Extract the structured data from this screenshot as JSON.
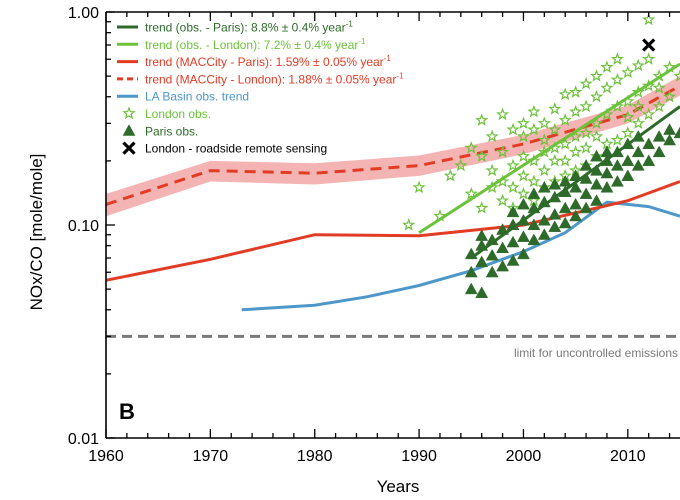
{
  "chart_data": {
    "type": "scatter",
    "panel_label": "B",
    "xlabel": "Years",
    "ylabel": "NOx/CO [mole/mole]",
    "xlim": [
      1960,
      2015
    ],
    "ylim": [
      0.01,
      1.0
    ],
    "y_scale": "log",
    "x_ticks": [
      1960,
      1970,
      1980,
      1990,
      2000,
      2010
    ],
    "y_ticks": [
      {
        "value": 0.01,
        "label": "0.01"
      },
      {
        "value": 0.1,
        "label": "0.10"
      },
      {
        "value": 1.0,
        "label": "1.00"
      }
    ],
    "grid": false,
    "legend_position": "top-left",
    "legend": [
      {
        "id": "paris_trend",
        "text": "trend (obs. - Paris): 8.8% ± 0.4% year",
        "sup": "-1",
        "color": "#2e6b2a",
        "style": "solid"
      },
      {
        "id": "london_trend",
        "text": "trend (obs. - London): 7.2% ± 0.4% year",
        "sup": "-1",
        "color": "#6cc23a",
        "style": "solid"
      },
      {
        "id": "macc_paris",
        "text": "trend (MACCity - Paris): 1.59% ± 0.05% year",
        "sup": "-1",
        "color": "#e23c25",
        "style": "solid"
      },
      {
        "id": "macc_london",
        "text": "trend (MACCity - London): 1.88% ± 0.05% year",
        "sup": "-1",
        "color": "#e23c25",
        "style": "dashed"
      },
      {
        "id": "la_basin",
        "text": "LA Basin obs. trend",
        "sup": "",
        "color": "#4d97c9",
        "style": "solid"
      },
      {
        "id": "london_obs",
        "text": "London obs.",
        "sup": "",
        "color": "#6cc23a",
        "style": "star"
      },
      {
        "id": "paris_obs",
        "text": "Paris obs.",
        "sup": "",
        "color": "#2e6b2a",
        "style": "triangle"
      },
      {
        "id": "remote",
        "text": "London - roadside remote sensing",
        "sup": "",
        "color": "#000000",
        "style": "cross"
      }
    ],
    "annotations": [
      {
        "text": "limit for uncontrolled emissions",
        "x": 2015,
        "y": 0.027
      }
    ],
    "colors": {
      "paris": "#2e6b2a",
      "london": "#6cc23a",
      "maccity": "#e23c25",
      "maccity_band": "#f2a7a7",
      "la_basin": "#4d97c9",
      "limit": "#7a7a7a",
      "remote": "#000000"
    },
    "series": [
      {
        "name": "trend (MACCity - London)",
        "x": [
          1960,
          1970,
          1980,
          1990,
          2000,
          2010,
          2015
        ],
        "y": [
          0.125,
          0.18,
          0.175,
          0.19,
          0.24,
          0.33,
          0.45
        ],
        "band_low": [
          0.11,
          0.16,
          0.155,
          0.17,
          0.215,
          0.3,
          0.405
        ],
        "band_high": [
          0.14,
          0.2,
          0.195,
          0.212,
          0.265,
          0.365,
          0.5
        ]
      },
      {
        "name": "trend (MACCity - Paris)",
        "x": [
          1960,
          1970,
          1980,
          1990,
          2000,
          2010,
          2015
        ],
        "y": [
          0.055,
          0.069,
          0.09,
          0.089,
          0.1,
          0.13,
          0.16
        ]
      },
      {
        "name": "LA Basin obs. trend",
        "x": [
          1973,
          1980,
          1985,
          1990,
          1995,
          2000,
          2004,
          2008,
          2012,
          2015
        ],
        "y": [
          0.04,
          0.042,
          0.046,
          0.052,
          0.061,
          0.075,
          0.092,
          0.128,
          0.122,
          0.11
        ]
      },
      {
        "name": "trend (obs. - London)",
        "x": [
          1990,
          2015
        ],
        "y": [
          0.092,
          0.57
        ]
      },
      {
        "name": "trend (obs. - Paris)",
        "x": [
          1995,
          2015
        ],
        "y": [
          0.07,
          0.36
        ]
      },
      {
        "name": "limit for uncontrolled emissions",
        "x": [
          1960,
          2015
        ],
        "y": [
          0.03,
          0.03
        ]
      },
      {
        "name": "London obs.",
        "points": [
          [
            1989,
            0.1
          ],
          [
            1990,
            0.15
          ],
          [
            1992,
            0.11
          ],
          [
            1993,
            0.17
          ],
          [
            1994,
            0.19
          ],
          [
            1995,
            0.14
          ],
          [
            1995,
            0.23
          ],
          [
            1996,
            0.12
          ],
          [
            1996,
            0.21
          ],
          [
            1996,
            0.31
          ],
          [
            1997,
            0.15
          ],
          [
            1997,
            0.26
          ],
          [
            1997,
            0.18
          ],
          [
            1998,
            0.13
          ],
          [
            1998,
            0.22
          ],
          [
            1998,
            0.33
          ],
          [
            1998,
            0.16
          ],
          [
            1999,
            0.12
          ],
          [
            1999,
            0.19
          ],
          [
            1999,
            0.28
          ],
          [
            1999,
            0.15
          ],
          [
            2000,
            0.14
          ],
          [
            2000,
            0.21
          ],
          [
            2000,
            0.3
          ],
          [
            2000,
            0.17
          ],
          [
            2000,
            0.26
          ],
          [
            2001,
            0.13
          ],
          [
            2001,
            0.2
          ],
          [
            2001,
            0.28
          ],
          [
            2001,
            0.16
          ],
          [
            2001,
            0.34
          ],
          [
            2002,
            0.15
          ],
          [
            2002,
            0.22
          ],
          [
            2002,
            0.3
          ],
          [
            2002,
            0.18
          ],
          [
            2002,
            0.25
          ],
          [
            2003,
            0.16
          ],
          [
            2003,
            0.23
          ],
          [
            2003,
            0.35
          ],
          [
            2003,
            0.2
          ],
          [
            2003,
            0.28
          ],
          [
            2004,
            0.17
          ],
          [
            2004,
            0.24
          ],
          [
            2004,
            0.31
          ],
          [
            2004,
            0.41
          ],
          [
            2004,
            0.2
          ],
          [
            2005,
            0.18
          ],
          [
            2005,
            0.26
          ],
          [
            2005,
            0.34
          ],
          [
            2005,
            0.42
          ],
          [
            2005,
            0.22
          ],
          [
            2006,
            0.19
          ],
          [
            2006,
            0.27
          ],
          [
            2006,
            0.36
          ],
          [
            2006,
            0.46
          ],
          [
            2006,
            0.23
          ],
          [
            2007,
            0.21
          ],
          [
            2007,
            0.3
          ],
          [
            2007,
            0.4
          ],
          [
            2007,
            0.5
          ],
          [
            2007,
            0.26
          ],
          [
            2008,
            0.24
          ],
          [
            2008,
            0.33
          ],
          [
            2008,
            0.44
          ],
          [
            2008,
            0.55
          ],
          [
            2009,
            0.25
          ],
          [
            2009,
            0.36
          ],
          [
            2009,
            0.48
          ],
          [
            2009,
            0.6
          ],
          [
            2010,
            0.27
          ],
          [
            2010,
            0.38
          ],
          [
            2010,
            0.52
          ],
          [
            2010,
            0.32
          ],
          [
            2011,
            0.3
          ],
          [
            2011,
            0.42
          ],
          [
            2011,
            0.56
          ],
          [
            2011,
            0.36
          ],
          [
            2012,
            0.33
          ],
          [
            2012,
            0.45
          ],
          [
            2012,
            0.6
          ],
          [
            2012,
            0.92
          ],
          [
            2013,
            0.36
          ],
          [
            2013,
            0.5
          ],
          [
            2013,
            0.44
          ],
          [
            2014,
            0.4
          ],
          [
            2014,
            0.55
          ],
          [
            2015,
            0.5
          ]
        ]
      },
      {
        "name": "Paris obs.",
        "points": [
          [
            1995,
            0.05
          ],
          [
            1995,
            0.06
          ],
          [
            1995,
            0.073
          ],
          [
            1996,
            0.048
          ],
          [
            1996,
            0.067
          ],
          [
            1996,
            0.08
          ],
          [
            1996,
            0.089
          ],
          [
            1997,
            0.06
          ],
          [
            1997,
            0.072
          ],
          [
            1997,
            0.085
          ],
          [
            1998,
            0.064
          ],
          [
            1998,
            0.078
          ],
          [
            1998,
            0.095
          ],
          [
            1999,
            0.068
          ],
          [
            1999,
            0.083
          ],
          [
            1999,
            0.1
          ],
          [
            1999,
            0.115
          ],
          [
            2000,
            0.073
          ],
          [
            2000,
            0.088
          ],
          [
            2000,
            0.105
          ],
          [
            2000,
            0.125
          ],
          [
            2001,
            0.085
          ],
          [
            2001,
            0.1
          ],
          [
            2001,
            0.12
          ],
          [
            2001,
            0.14
          ],
          [
            2002,
            0.09
          ],
          [
            2002,
            0.105
          ],
          [
            2002,
            0.128
          ],
          [
            2002,
            0.15
          ],
          [
            2003,
            0.098
          ],
          [
            2003,
            0.112
          ],
          [
            2003,
            0.135
          ],
          [
            2003,
            0.155
          ],
          [
            2004,
            0.102
          ],
          [
            2004,
            0.12
          ],
          [
            2004,
            0.143
          ],
          [
            2004,
            0.16
          ],
          [
            2005,
            0.11
          ],
          [
            2005,
            0.125
          ],
          [
            2005,
            0.15
          ],
          [
            2005,
            0.17
          ],
          [
            2006,
            0.12
          ],
          [
            2006,
            0.14
          ],
          [
            2006,
            0.165
          ],
          [
            2006,
            0.19
          ],
          [
            2007,
            0.13
          ],
          [
            2007,
            0.155
          ],
          [
            2007,
            0.18
          ],
          [
            2007,
            0.21
          ],
          [
            2008,
            0.15
          ],
          [
            2008,
            0.175
          ],
          [
            2008,
            0.2
          ],
          [
            2008,
            0.22
          ],
          [
            2009,
            0.16
          ],
          [
            2009,
            0.19
          ],
          [
            2009,
            0.22
          ],
          [
            2010,
            0.17
          ],
          [
            2010,
            0.2
          ],
          [
            2010,
            0.24
          ],
          [
            2011,
            0.19
          ],
          [
            2011,
            0.22
          ],
          [
            2011,
            0.26
          ],
          [
            2012,
            0.2
          ],
          [
            2012,
            0.24
          ],
          [
            2013,
            0.22
          ],
          [
            2013,
            0.26
          ],
          [
            2014,
            0.25
          ],
          [
            2014,
            0.28
          ],
          [
            2015,
            0.27
          ]
        ]
      },
      {
        "name": "London - roadside remote sensing",
        "points": [
          [
            2012,
            0.7
          ]
        ]
      }
    ]
  }
}
